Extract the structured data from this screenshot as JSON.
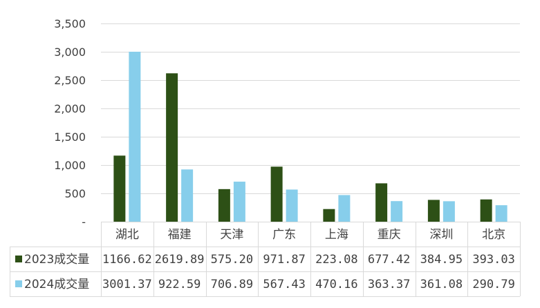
{
  "chart_data": {
    "type": "bar",
    "categories": [
      "湖北",
      "福建",
      "天津",
      "广东",
      "上海",
      "重庆",
      "深圳",
      "北京"
    ],
    "series": [
      {
        "name": "2023成交量",
        "color": "#2d5016",
        "values": [
          1166.62,
          2619.89,
          575.2,
          971.87,
          223.08,
          677.42,
          384.95,
          393.03
        ],
        "labels": [
          "1166.62",
          "2619.89",
          "575.20",
          "971.87",
          "223.08",
          "677.42",
          "384.95",
          "393.03"
        ]
      },
      {
        "name": "2024成交量",
        "color": "#87ceeb",
        "values": [
          3001.37,
          922.59,
          706.89,
          567.43,
          470.16,
          363.37,
          361.08,
          290.79
        ],
        "labels": [
          "3001.37",
          "922.59",
          "706.89",
          "567.43",
          "470.16",
          "363.37",
          "361.08",
          "290.79"
        ]
      }
    ],
    "ylim": [
      0,
      3500
    ],
    "yticks": [
      0,
      500,
      1000,
      1500,
      2000,
      2500,
      3000,
      3500
    ],
    "ytick_labels": [
      "-",
      "500",
      "1,000",
      "1,500",
      "2,000",
      "2,500",
      "3,000",
      "3,500"
    ],
    "grid": true,
    "legend_placement": "data-table"
  }
}
